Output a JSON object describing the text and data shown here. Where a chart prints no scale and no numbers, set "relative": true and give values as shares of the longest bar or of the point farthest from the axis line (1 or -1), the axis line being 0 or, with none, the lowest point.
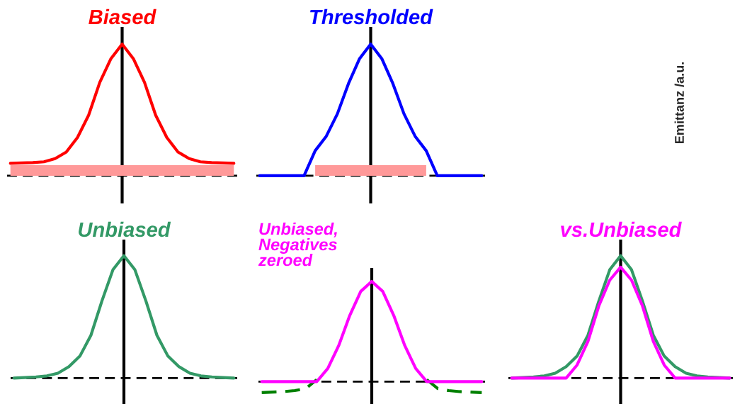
{
  "chart_data": [
    {
      "type": "line",
      "title": "Biased",
      "relative": true,
      "categories": [
        null,
        null,
        null,
        null,
        null,
        null,
        null,
        null,
        null,
        null,
        null,
        null,
        null,
        null,
        null,
        null,
        null,
        null,
        null,
        null,
        null
      ],
      "series": [
        {
          "type": "area",
          "color": "#ff9999",
          "values": [
            0.08,
            0.08,
            0.08,
            0.08,
            0.08,
            0.08,
            0.08,
            0.08,
            0.08,
            0.08,
            0.08,
            0.08,
            0.08,
            0.08,
            0.08,
            0.08,
            0.08,
            0.08,
            0.08,
            0.08,
            0.08
          ]
        },
        {
          "color": "#ff0000",
          "values": [
            0.094,
            0.097,
            0.1,
            0.106,
            0.13,
            0.18,
            0.29,
            0.46,
            0.71,
            0.89,
            1.0,
            0.89,
            0.71,
            0.46,
            0.29,
            0.18,
            0.13,
            0.106,
            0.1,
            0.097,
            0.094
          ]
        }
      ],
      "ref_lines": [
        {
          "axis": "y",
          "value": 0,
          "line_style": "dashed",
          "color": "#000000"
        }
      ]
    },
    {
      "type": "line",
      "title": "Thresholded",
      "relative": true,
      "categories": [
        null,
        null,
        null,
        null,
        null,
        null,
        null,
        null,
        null,
        null,
        null,
        null,
        null,
        null,
        null,
        null,
        null,
        null,
        null,
        null,
        null
      ],
      "series": [
        {
          "type": "area",
          "color": "#ff9999",
          "values": [
            null,
            null,
            null,
            null,
            null,
            0.08,
            0.08,
            0.08,
            0.08,
            0.08,
            0.08,
            0.08,
            0.08,
            0.08,
            0.08,
            0.08,
            null,
            null,
            null,
            null,
            null
          ]
        },
        {
          "color": "#0000ff",
          "values": [
            0,
            0,
            0,
            0,
            0,
            0.19,
            0.3,
            0.47,
            0.7,
            0.89,
            1.0,
            0.89,
            0.7,
            0.47,
            0.3,
            0.19,
            0,
            0,
            0,
            0,
            0
          ]
        }
      ],
      "ref_lines": [
        {
          "axis": "y",
          "value": 0,
          "line_style": "dashed",
          "color": "#000000"
        }
      ]
    },
    {
      "type": "other",
      "ylabel": "Emittanz /a.u."
    },
    {
      "type": "line",
      "title": "Unbiased",
      "relative": true,
      "categories": [
        null,
        null,
        null,
        null,
        null,
        null,
        null,
        null,
        null,
        null,
        null,
        null,
        null,
        null,
        null,
        null,
        null,
        null,
        null,
        null,
        null
      ],
      "series": [
        {
          "color": "#339966",
          "values": [
            0,
            0.005,
            0.01,
            0.018,
            0.04,
            0.094,
            0.18,
            0.35,
            0.63,
            0.885,
            1.0,
            0.885,
            0.63,
            0.35,
            0.18,
            0.094,
            0.04,
            0.018,
            0.01,
            0.005,
            0
          ]
        }
      ],
      "ref_lines": [
        {
          "axis": "y",
          "value": 0,
          "line_style": "dashed",
          "color": "#000000"
        }
      ]
    },
    {
      "type": "line",
      "title": "Unbiased,\nNegatives\nzeroed",
      "relative": true,
      "categories": [
        null,
        null,
        null,
        null,
        null,
        null,
        null,
        null,
        null,
        null,
        null,
        null,
        null,
        null,
        null,
        null,
        null,
        null,
        null,
        null,
        null
      ],
      "series": [
        {
          "color": "#008000",
          "line_style": "dashed",
          "values": [
            -0.11,
            -0.105,
            -0.1,
            -0.09,
            -0.07,
            0.02,
            null,
            null,
            null,
            null,
            null,
            null,
            null,
            null,
            null,
            0.02,
            -0.07,
            -0.09,
            -0.1,
            -0.105,
            -0.11
          ]
        },
        {
          "color": "#ff00ff",
          "values": [
            0,
            0,
            0,
            0,
            0,
            0,
            0.13,
            0.36,
            0.66,
            0.9,
            1.0,
            0.9,
            0.66,
            0.36,
            0.13,
            0,
            0,
            0,
            0,
            0,
            0
          ]
        }
      ],
      "ref_lines": [
        {
          "axis": "y",
          "value": 0,
          "line_style": "dashed",
          "color": "#000000"
        }
      ]
    },
    {
      "type": "line",
      "title": "vs.Unbiased",
      "relative": true,
      "categories": [
        null,
        null,
        null,
        null,
        null,
        null,
        null,
        null,
        null,
        null,
        null,
        null,
        null,
        null,
        null,
        null,
        null,
        null,
        null,
        null,
        null
      ],
      "series": [
        {
          "color": "#339966",
          "values": [
            0,
            0.005,
            0.01,
            0.018,
            0.04,
            0.094,
            0.18,
            0.35,
            0.63,
            0.885,
            1.0,
            0.885,
            0.63,
            0.35,
            0.18,
            0.094,
            0.04,
            0.018,
            0.01,
            0.005,
            0
          ]
        },
        {
          "color": "#ff00ff",
          "values": [
            0,
            0,
            0,
            0,
            0,
            0,
            0.107,
            0.3,
            0.59,
            0.8,
            0.906,
            0.8,
            0.59,
            0.3,
            0.107,
            0,
            0,
            0,
            0,
            0,
            0
          ]
        }
      ],
      "ref_lines": [
        {
          "axis": "y",
          "value": 0,
          "line_style": "dashed",
          "color": "#000000"
        }
      ]
    }
  ]
}
